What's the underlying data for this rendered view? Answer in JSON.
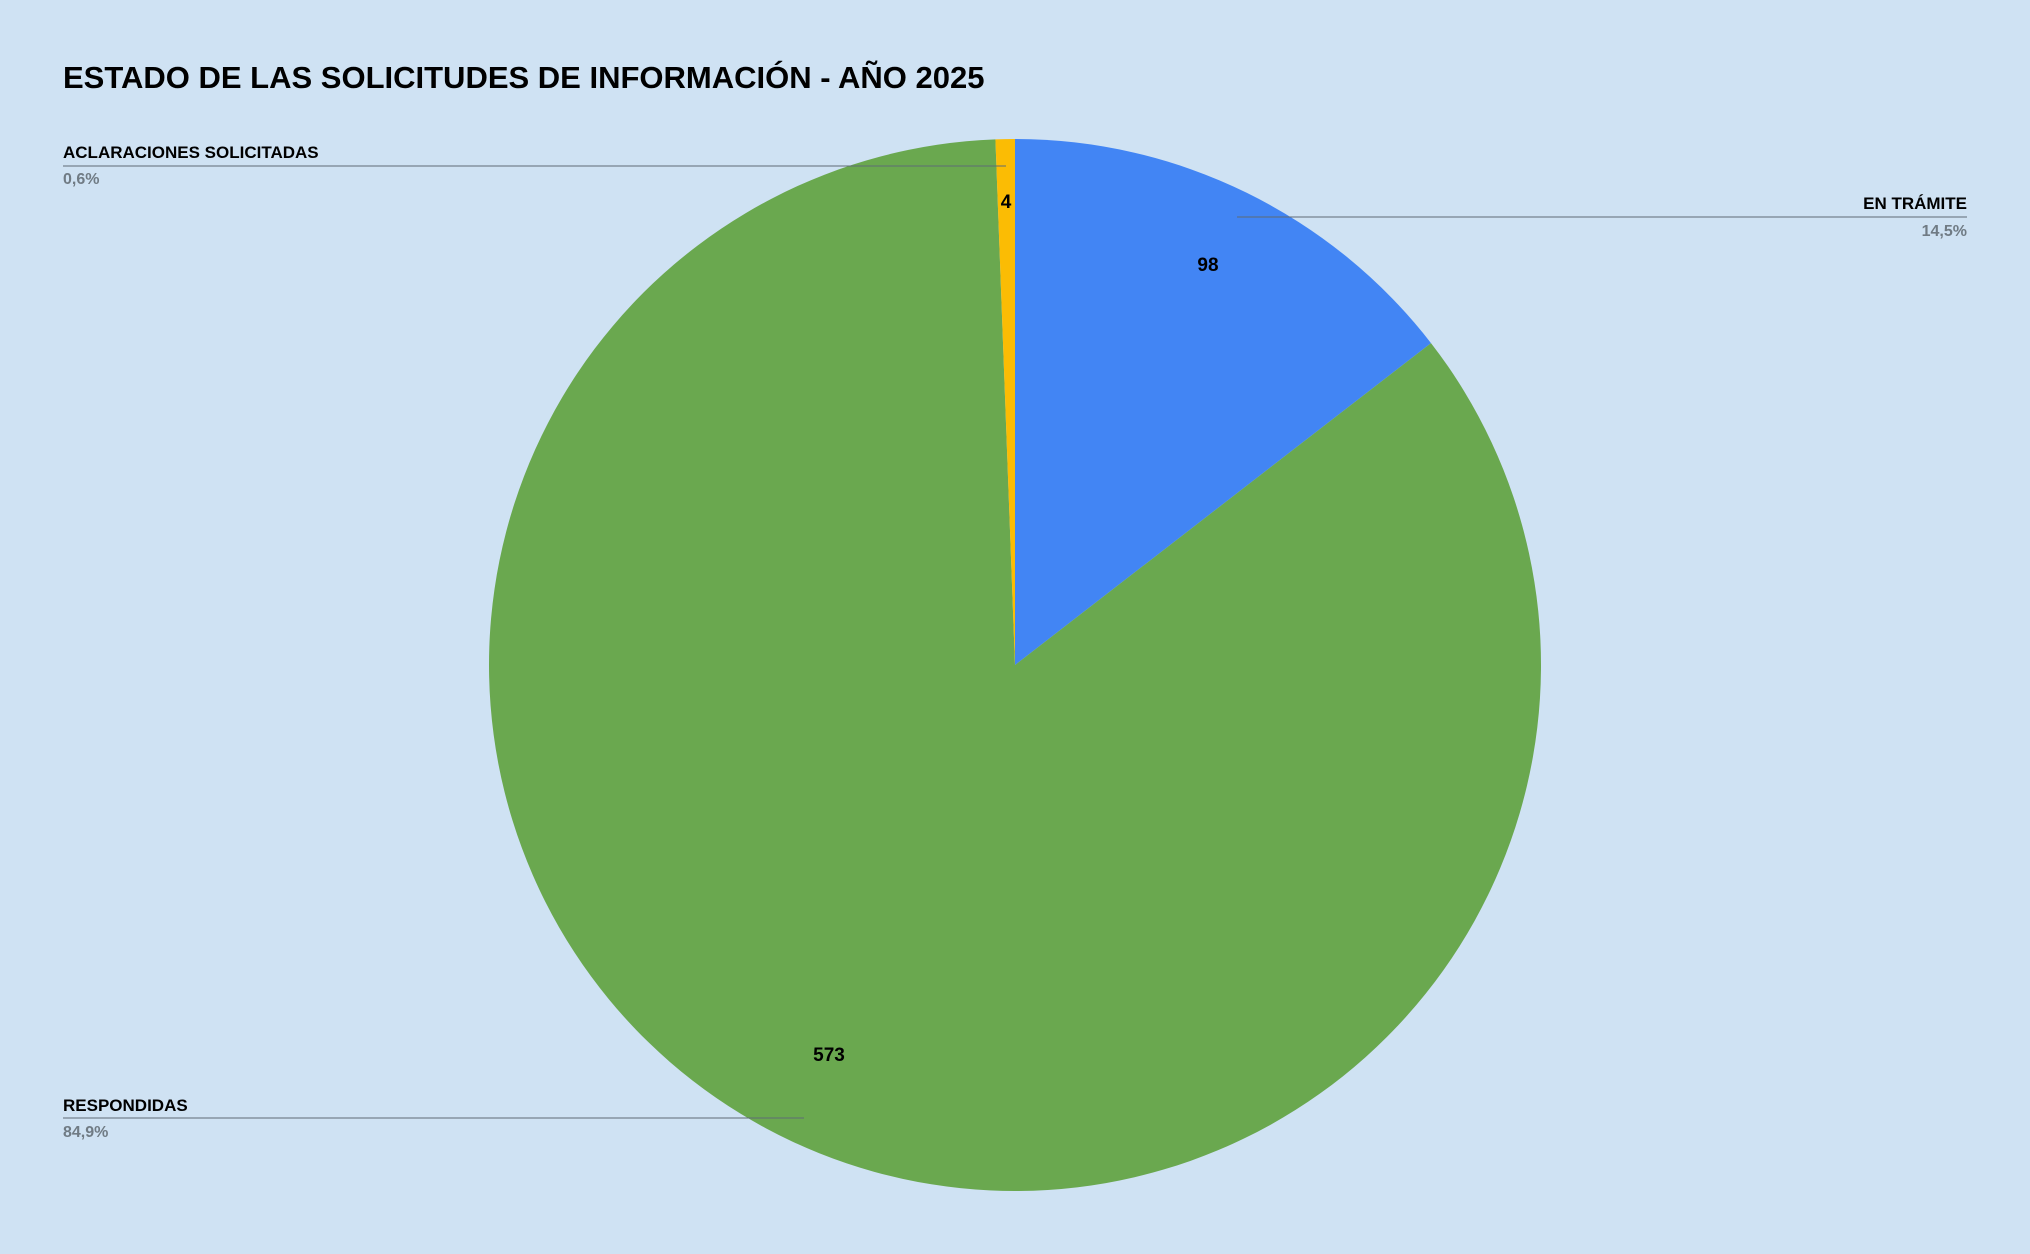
{
  "chart_data": {
    "type": "pie",
    "title": "ESTADO DE LAS SOLICITUDES DE INFORMACIÓN - AÑO 2025",
    "slices": [
      {
        "label": "EN TRÁMITE",
        "value": 98,
        "value_label": "98",
        "percent_label": "14,5%",
        "color": "#4285f4"
      },
      {
        "label": "RESPONDIDAS",
        "value": 573,
        "value_label": "573",
        "percent_label": "84,9%",
        "color": "#6aa84f"
      },
      {
        "label": "ACLARACIONES SOLICITADAS",
        "value": 4,
        "value_label": "4",
        "percent_label": "0,6%",
        "color": "#fbbc04"
      }
    ],
    "start_angle": "top, clockwise",
    "background_color": "#cfe2f3",
    "label_color": "#000000",
    "percent_color": "#707b84"
  }
}
